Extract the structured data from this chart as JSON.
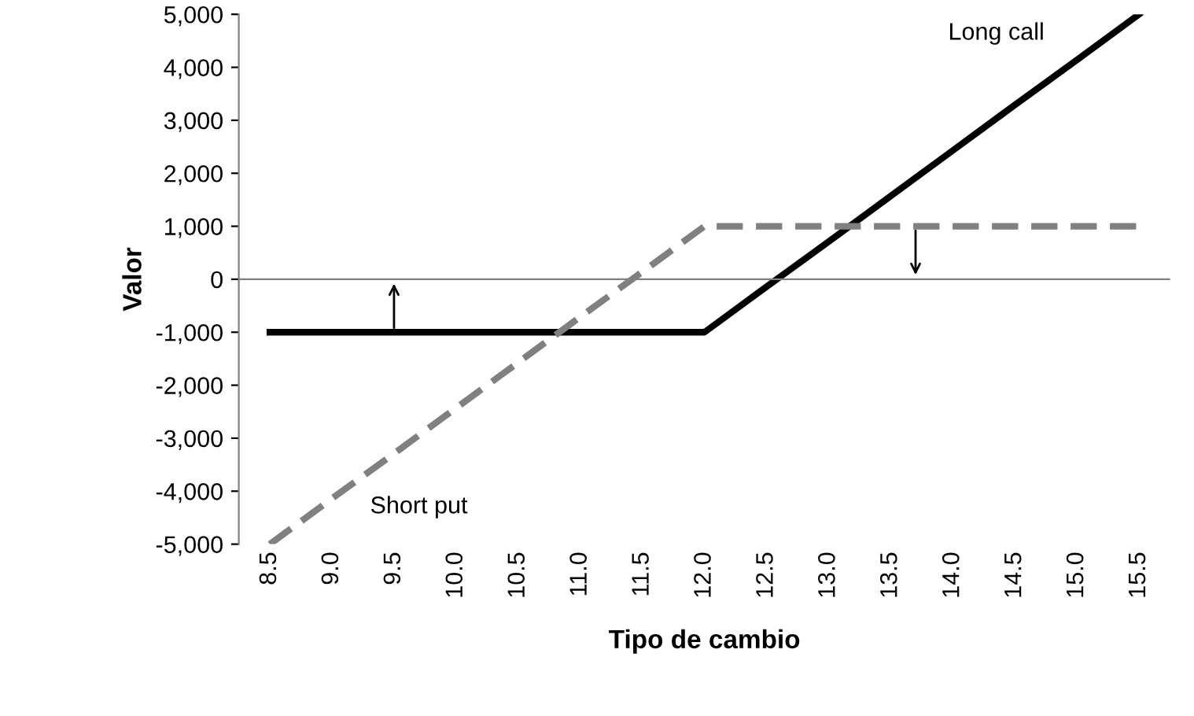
{
  "chart_data": {
    "type": "line",
    "xlabel": "Tipo de cambio",
    "ylabel": "Valor",
    "categories": [
      "8.5",
      "9.0",
      "9.5",
      "10.0",
      "10.5",
      "11.0",
      "11.5",
      "12.0",
      "12.5",
      "13.0",
      "13.5",
      "14.0",
      "14.5",
      "15.0",
      "15.5"
    ],
    "series": [
      {
        "name": "Long call",
        "color": "#000000",
        "line_style": "solid",
        "values": [
          -1000,
          -1000,
          -1000,
          -1000,
          -1000,
          -1000,
          -1000,
          -1000,
          -140,
          710,
          1570,
          2430,
          3290,
          4140,
          5000
        ]
      },
      {
        "name": "Short put",
        "color": "#808080",
        "line_style": "dashed",
        "values": [
          -5000,
          -4140,
          -3290,
          -2430,
          -1570,
          -710,
          140,
          1000,
          1000,
          1000,
          1000,
          1000,
          1000,
          1000,
          1000
        ]
      }
    ],
    "ylim": [
      -5000,
      5000
    ],
    "yticks": [
      {
        "value": -5000,
        "label": "-5,000"
      },
      {
        "value": -4000,
        "label": "-4,000"
      },
      {
        "value": -3000,
        "label": "-3,000"
      },
      {
        "value": -2000,
        "label": "-2,000"
      },
      {
        "value": -1000,
        "label": "-1,000"
      },
      0,
      {
        "value": 1000,
        "label": "1,000"
      },
      {
        "value": 2000,
        "label": "2,000"
      },
      {
        "value": 3000,
        "label": "3,000"
      },
      {
        "value": 4000,
        "label": "4,000"
      },
      {
        "value": 5000,
        "label": "5,000"
      }
    ],
    "ref_lines": [
      {
        "axis": "y",
        "value": 0,
        "color": "#808080"
      }
    ],
    "grid": false,
    "legend": false,
    "marker": "none"
  }
}
